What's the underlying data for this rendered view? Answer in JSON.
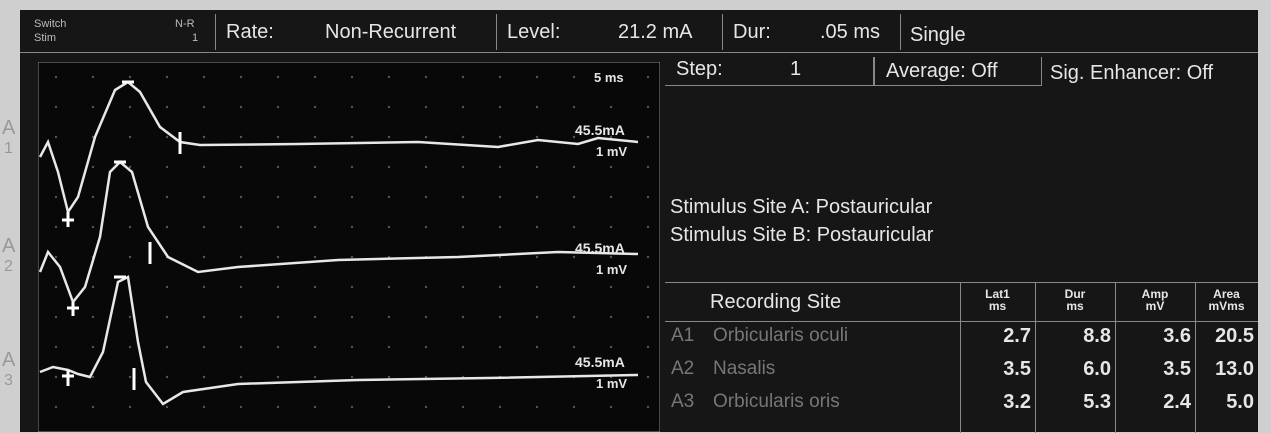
{
  "header": {
    "switch_label": "Switch",
    "stim_label": "Stim",
    "mode_code": "N-R",
    "mode_num": "1",
    "rate_label": "Rate:",
    "rate": "Non-Recurrent",
    "level_label": "Level:",
    "level": "21.2 mA",
    "dur_label": "Dur:",
    "dur": ".05 ms",
    "stim_mode": "Single"
  },
  "waveforms": {
    "timebase": "5 ms",
    "traces": [
      {
        "site": "A",
        "num": "1",
        "intensity": "45.5mA",
        "sensitivity": "1 mV"
      },
      {
        "site": "A",
        "num": "2",
        "intensity": "45.5mA",
        "sensitivity": "1 mV"
      },
      {
        "site": "A",
        "num": "3",
        "intensity": "45.5mA",
        "sensitivity": "1 mV"
      }
    ]
  },
  "settings": {
    "step_label": "Step:",
    "step": "1",
    "average": "Average: Off",
    "enhancer": "Sig. Enhancer: Off"
  },
  "stimulus_sites": [
    "Stimulus Site A: Postauricular",
    "Stimulus Site B: Postauricular"
  ],
  "table": {
    "headers": [
      [
        "Recording Site"
      ],
      [
        "Lat1",
        "ms"
      ],
      [
        "Dur",
        "ms"
      ],
      [
        "Amp",
        "mV"
      ],
      [
        "Area",
        "mVms"
      ]
    ],
    "rows": [
      [
        "A1",
        "Orbicularis oculi",
        "2.7",
        "8.8",
        "3.6",
        "20.5"
      ],
      [
        "A2",
        "Nasalis",
        "3.5",
        "6.0",
        "3.5",
        "13.0"
      ],
      [
        "A3",
        "Orbicularis oris",
        "3.2",
        "5.3",
        "2.4",
        "5.0"
      ]
    ]
  }
}
